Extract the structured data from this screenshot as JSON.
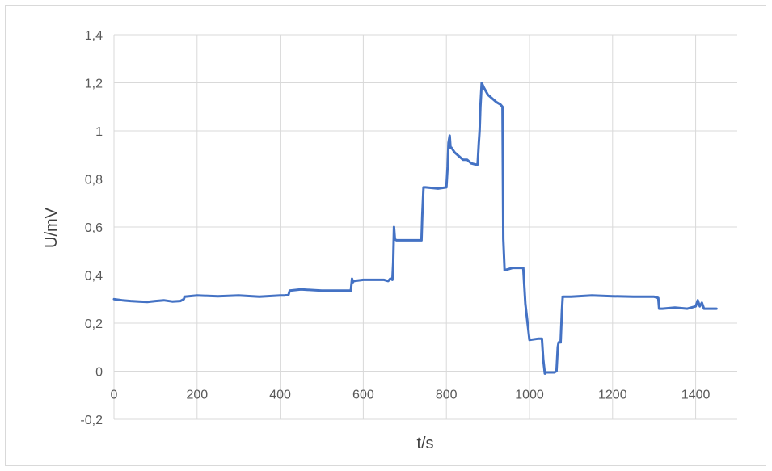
{
  "chart_data": {
    "type": "line",
    "title": "",
    "xlabel": "t/s",
    "ylabel": "U/mV",
    "xlim": [
      0,
      1500
    ],
    "ylim": [
      -0.2,
      1.4
    ],
    "x_ticks": [
      0,
      200,
      400,
      600,
      800,
      1000,
      1200,
      1400
    ],
    "y_ticks": [
      -0.2,
      0,
      0.2,
      0.4,
      0.6,
      0.8,
      1,
      1.2,
      1.4
    ],
    "x_tick_labels": [
      "0",
      "200",
      "400",
      "600",
      "800",
      "1000",
      "1200",
      "1400"
    ],
    "y_tick_labels": [
      "-0,2",
      "0",
      "0,2",
      "0,4",
      "0,6",
      "0,8",
      "1",
      "1,2",
      "1,4"
    ],
    "grid": true,
    "legend": "none",
    "series": [
      {
        "color": "#4472c4",
        "x": [
          0,
          20,
          40,
          60,
          80,
          100,
          120,
          140,
          160,
          168,
          170,
          200,
          250,
          300,
          350,
          400,
          410,
          420,
          423,
          450,
          500,
          550,
          570,
          573,
          575,
          577,
          600,
          650,
          660,
          665,
          670,
          672,
          674,
          676,
          680,
          700,
          740,
          742,
          745,
          750,
          780,
          800,
          803,
          805,
          808,
          810,
          812,
          820,
          840,
          850,
          860,
          870,
          875,
          878,
          880,
          882,
          885,
          890,
          900,
          920,
          930,
          935,
          937,
          940,
          960,
          980,
          985,
          990,
          1000,
          1020,
          1030,
          1033,
          1035,
          1037,
          1040,
          1060,
          1065,
          1068,
          1070,
          1075,
          1078,
          1080,
          1100,
          1150,
          1200,
          1250,
          1300,
          1310,
          1312,
          1320,
          1350,
          1380,
          1400,
          1405,
          1410,
          1415,
          1420,
          1450
        ],
        "y": [
          0.3,
          0.295,
          0.292,
          0.29,
          0.288,
          0.292,
          0.295,
          0.29,
          0.292,
          0.3,
          0.31,
          0.315,
          0.312,
          0.315,
          0.31,
          0.315,
          0.315,
          0.318,
          0.335,
          0.34,
          0.335,
          0.335,
          0.335,
          0.385,
          0.37,
          0.375,
          0.38,
          0.38,
          0.375,
          0.385,
          0.38,
          0.45,
          0.6,
          0.55,
          0.545,
          0.545,
          0.545,
          0.65,
          0.765,
          0.765,
          0.76,
          0.765,
          0.85,
          0.95,
          0.98,
          0.93,
          0.93,
          0.91,
          0.88,
          0.88,
          0.865,
          0.86,
          0.86,
          0.95,
          1.0,
          1.1,
          1.2,
          1.18,
          1.15,
          1.12,
          1.11,
          1.1,
          0.55,
          0.42,
          0.43,
          0.43,
          0.43,
          0.28,
          0.13,
          0.135,
          0.135,
          0.05,
          0.02,
          -0.01,
          -0.005,
          -0.005,
          0.0,
          0.1,
          0.12,
          0.12,
          0.25,
          0.31,
          0.31,
          0.315,
          0.312,
          0.31,
          0.31,
          0.305,
          0.26,
          0.26,
          0.265,
          0.26,
          0.27,
          0.295,
          0.27,
          0.285,
          0.26,
          0.26
        ]
      }
    ]
  }
}
